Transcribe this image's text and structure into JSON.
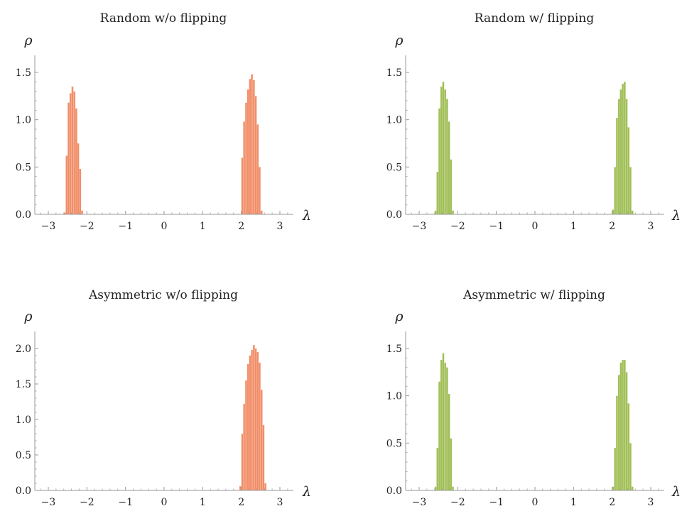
{
  "chart_data": [
    {
      "type": "bar",
      "title": "Random w/o flipping",
      "xlabel": "λ",
      "ylabel": "ρ",
      "color": "#f08860",
      "xlim": [
        -3.35,
        3.35
      ],
      "ylim": [
        0,
        1.5
      ],
      "xticks": [
        -3,
        -2,
        -1,
        0,
        1,
        2,
        3
      ],
      "xtick_labels": [
        "−3",
        "−2",
        "−1",
        "0",
        "1",
        "2",
        "3"
      ],
      "yticks": [
        0,
        0.5,
        1,
        1.5
      ],
      "ytick_labels": [
        "0.0",
        "0.5",
        "1.0",
        "1.5"
      ],
      "bin_width": 0.05,
      "x": [
        -2.575,
        -2.525,
        -2.475,
        -2.425,
        -2.375,
        -2.325,
        -2.275,
        -2.225,
        -2.175,
        -2.125,
        2.025,
        2.075,
        2.125,
        2.175,
        2.225,
        2.275,
        2.325,
        2.375,
        2.425,
        2.475,
        2.525
      ],
      "values": [
        0.02,
        0.62,
        1.18,
        1.28,
        1.35,
        1.3,
        1.12,
        0.75,
        0.48,
        0.04,
        0.6,
        0.98,
        1.18,
        1.32,
        1.43,
        1.48,
        1.42,
        1.25,
        0.95,
        0.5,
        0.04
      ]
    },
    {
      "type": "bar",
      "title": "Random w/ flipping",
      "xlabel": "λ",
      "ylabel": "ρ",
      "color": "#9cbc4e",
      "xlim": [
        -3.35,
        3.35
      ],
      "ylim": [
        0,
        1.5
      ],
      "xticks": [
        -3,
        -2,
        -1,
        0,
        1,
        2,
        3
      ],
      "xtick_labels": [
        "−3",
        "−2",
        "−1",
        "0",
        "1",
        "2",
        "3"
      ],
      "yticks": [
        0,
        0.5,
        1,
        1.5
      ],
      "ytick_labels": [
        "0.0",
        "0.5",
        "1.0",
        "1.5"
      ],
      "bin_width": 0.05,
      "x": [
        -2.575,
        -2.525,
        -2.475,
        -2.425,
        -2.375,
        -2.325,
        -2.275,
        -2.225,
        -2.175,
        -2.125,
        2.025,
        2.075,
        2.125,
        2.175,
        2.225,
        2.275,
        2.325,
        2.375,
        2.425,
        2.475,
        2.525
      ],
      "values": [
        0.04,
        0.45,
        1.12,
        1.35,
        1.4,
        1.32,
        1.22,
        0.98,
        0.58,
        0.04,
        0.05,
        0.5,
        1.02,
        1.22,
        1.32,
        1.38,
        1.4,
        1.22,
        0.92,
        0.5,
        0.04
      ]
    },
    {
      "type": "bar",
      "title": "Asymmetric w/o flipping",
      "xlabel": "λ",
      "ylabel": "ρ",
      "color": "#f08860",
      "xlim": [
        -3.35,
        3.35
      ],
      "ylim": [
        0,
        2.0
      ],
      "xticks": [
        -3,
        -2,
        -1,
        0,
        1,
        2,
        3
      ],
      "xtick_labels": [
        "−3",
        "−2",
        "−1",
        "0",
        "1",
        "2",
        "3"
      ],
      "yticks": [
        0,
        0.5,
        1,
        1.5,
        2
      ],
      "ytick_labels": [
        "0.0",
        "0.5",
        "1.0",
        "1.5",
        "2.0"
      ],
      "bin_width": 0.05,
      "x": [
        1.975,
        2.025,
        2.075,
        2.125,
        2.175,
        2.225,
        2.275,
        2.325,
        2.375,
        2.425,
        2.475,
        2.525,
        2.575,
        2.625
      ],
      "values": [
        0.06,
        0.8,
        1.22,
        1.55,
        1.78,
        1.9,
        1.98,
        2.05,
        2.0,
        1.95,
        1.8,
        1.42,
        0.92,
        0.1
      ]
    },
    {
      "type": "bar",
      "title": "Asymmetric w/ flipping",
      "xlabel": "λ",
      "ylabel": "ρ",
      "color": "#9cbc4e",
      "xlim": [
        -3.35,
        3.35
      ],
      "ylim": [
        0,
        1.5
      ],
      "xticks": [
        -3,
        -2,
        -1,
        0,
        1,
        2,
        3
      ],
      "xtick_labels": [
        "−3",
        "−2",
        "−1",
        "0",
        "1",
        "2",
        "3"
      ],
      "yticks": [
        0,
        0.5,
        1,
        1.5
      ],
      "ytick_labels": [
        "0.0",
        "0.5",
        "1.0",
        "1.5"
      ],
      "bin_width": 0.05,
      "x": [
        -2.575,
        -2.525,
        -2.475,
        -2.425,
        -2.375,
        -2.325,
        -2.275,
        -2.225,
        -2.175,
        -2.125,
        2.025,
        2.075,
        2.125,
        2.175,
        2.225,
        2.275,
        2.325,
        2.375,
        2.425,
        2.475,
        2.525
      ],
      "values": [
        0.04,
        0.45,
        1.15,
        1.38,
        1.45,
        1.35,
        1.3,
        1.02,
        0.55,
        0.04,
        0.04,
        0.45,
        1.0,
        1.22,
        1.35,
        1.38,
        1.38,
        1.25,
        0.92,
        0.5,
        0.04
      ]
    }
  ]
}
